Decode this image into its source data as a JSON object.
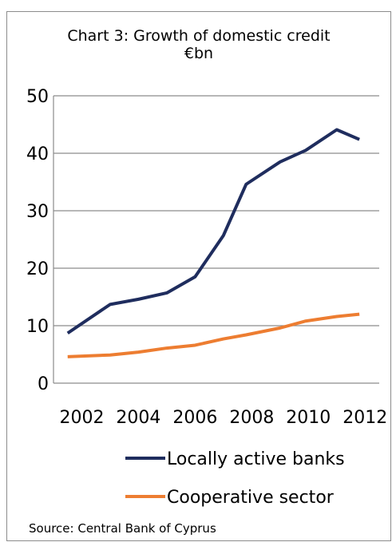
{
  "chart_data": {
    "type": "line",
    "title": "Chart 3: Growth of domestic credit",
    "subtitle": "€bn",
    "x": [
      2001.5,
      2003,
      2004,
      2005,
      2006,
      2007,
      2007.8,
      2009,
      2009.9,
      2011,
      2011.8
    ],
    "x_ticks": [
      "2002",
      "2004",
      "2006",
      "2008",
      "2010",
      "2012"
    ],
    "ylim": [
      0,
      50
    ],
    "y_ticks": [
      "0",
      "10",
      "20",
      "30",
      "40",
      "50"
    ],
    "grid": true,
    "legend_position": "bottom",
    "series": [
      {
        "name": "Locally active banks",
        "color": "#1f2d5e",
        "values": [
          8.7,
          13.7,
          14.6,
          15.7,
          18.5,
          25.7,
          34.6,
          38.5,
          40.5,
          44.1,
          42.4
        ]
      },
      {
        "name": "Cooperative sector",
        "color": "#ed7d31",
        "values": [
          4.6,
          4.9,
          5.4,
          6.1,
          6.6,
          7.7,
          8.4,
          9.6,
          10.8,
          11.6,
          12.0
        ]
      }
    ]
  },
  "source": "Source: Central Bank of Cyprus"
}
